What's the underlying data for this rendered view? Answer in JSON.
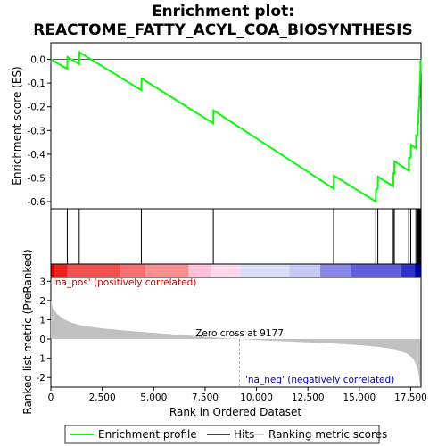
{
  "title_line1": "Enrichment plot:",
  "title_line2": "REACTOME_FATTY_ACYL_COA_BIOSYNTHESIS",
  "colors": {
    "es_line": "#00ff00",
    "hit": "#000000",
    "metric_fill": "#c0c0c0",
    "pos_label": "#cc0000",
    "neg_label": "#0000cc"
  },
  "chart_data": [
    {
      "type": "line",
      "name": "enrichment-profile",
      "ylabel": "Enrichment score (ES)",
      "xlim": [
        0,
        18000
      ],
      "ylim": [
        -0.63,
        0.07
      ],
      "yticks": [
        0.0,
        -0.1,
        -0.2,
        -0.3,
        -0.4,
        -0.5,
        -0.6
      ],
      "ytick_labels": [
        "0.0",
        "-0.1",
        "-0.2",
        "-0.3",
        "-0.4",
        "-0.5",
        "-0.6"
      ],
      "points": [
        [
          0,
          0.0
        ],
        [
          800,
          -0.04
        ],
        [
          810,
          0.01
        ],
        [
          1380,
          -0.02
        ],
        [
          1390,
          0.03
        ],
        [
          4400,
          -0.13
        ],
        [
          4410,
          -0.08
        ],
        [
          7900,
          -0.27
        ],
        [
          7910,
          -0.215
        ],
        [
          13750,
          -0.545
        ],
        [
          13760,
          -0.49
        ],
        [
          15800,
          -0.6
        ],
        [
          15810,
          -0.55
        ],
        [
          15900,
          -0.545
        ],
        [
          15910,
          -0.495
        ],
        [
          16650,
          -0.535
        ],
        [
          16660,
          -0.48
        ],
        [
          16700,
          -0.48
        ],
        [
          16710,
          -0.43
        ],
        [
          17400,
          -0.47
        ],
        [
          17410,
          -0.415
        ],
        [
          17500,
          -0.415
        ],
        [
          17510,
          -0.36
        ],
        [
          17750,
          -0.375
        ],
        [
          17760,
          -0.32
        ],
        [
          17830,
          -0.32
        ],
        [
          17840,
          -0.27
        ],
        [
          17870,
          -0.27
        ],
        [
          17880,
          -0.215
        ],
        [
          17900,
          -0.215
        ],
        [
          17910,
          -0.16
        ],
        [
          17930,
          -0.16
        ],
        [
          17940,
          -0.105
        ],
        [
          17950,
          -0.105
        ],
        [
          17960,
          -0.055
        ],
        [
          17970,
          -0.055
        ],
        [
          17980,
          0.0
        ]
      ]
    },
    {
      "type": "hits",
      "name": "hits",
      "positions": [
        800,
        1380,
        4400,
        7900,
        13750,
        15800,
        15900,
        16650,
        16700,
        17400,
        17500,
        17750,
        17830,
        17870,
        17900,
        17930,
        17950,
        17970
      ]
    },
    {
      "type": "heatmap",
      "name": "rank-color-bar",
      "segments": [
        {
          "from": 0,
          "to": 200,
          "color": "#e00000"
        },
        {
          "from": 200,
          "to": 800,
          "color": "#ee2020"
        },
        {
          "from": 800,
          "to": 3400,
          "color": "#f05050"
        },
        {
          "from": 3400,
          "to": 4600,
          "color": "#f57070"
        },
        {
          "from": 4600,
          "to": 6700,
          "color": "#f89090"
        },
        {
          "from": 6700,
          "to": 7800,
          "color": "#fcc0d8"
        },
        {
          "from": 7800,
          "to": 9200,
          "color": "#fcd8ec"
        },
        {
          "from": 9200,
          "to": 11600,
          "color": "#dcdcfa"
        },
        {
          "from": 11600,
          "to": 13100,
          "color": "#c8c8f5"
        },
        {
          "from": 13100,
          "to": 14600,
          "color": "#8888e8"
        },
        {
          "from": 14600,
          "to": 17000,
          "color": "#6060dd"
        },
        {
          "from": 17000,
          "to": 17700,
          "color": "#3030cc"
        },
        {
          "from": 17700,
          "to": 18000,
          "color": "#0000b0"
        }
      ]
    },
    {
      "type": "area",
      "name": "ranked-list-metric",
      "xlabel": "Rank in Ordered Dataset",
      "ylabel": "Ranked list metric (PreRanked)",
      "xlim": [
        0,
        18000
      ],
      "ylim": [
        -2.5,
        3.2
      ],
      "yticks": [
        3,
        2,
        1,
        0,
        -1,
        -2
      ],
      "xticks": [
        0,
        2500,
        5000,
        7500,
        10000,
        12500,
        15000,
        17500
      ],
      "xtick_labels": [
        "0",
        "2,500",
        "5,000",
        "7,500",
        "10,000",
        "12,500",
        "15,000",
        "17,500"
      ],
      "points": [
        [
          0,
          2.0
        ],
        [
          100,
          1.6
        ],
        [
          300,
          1.3
        ],
        [
          600,
          1.05
        ],
        [
          1000,
          0.85
        ],
        [
          1500,
          0.7
        ],
        [
          2500,
          0.55
        ],
        [
          3500,
          0.45
        ],
        [
          5000,
          0.32
        ],
        [
          6500,
          0.2
        ],
        [
          8000,
          0.08
        ],
        [
          9177,
          0.0
        ],
        [
          10500,
          -0.08
        ],
        [
          12000,
          -0.15
        ],
        [
          13500,
          -0.22
        ],
        [
          15000,
          -0.32
        ],
        [
          16000,
          -0.42
        ],
        [
          16800,
          -0.55
        ],
        [
          17300,
          -0.75
        ],
        [
          17600,
          -1.0
        ],
        [
          17800,
          -1.4
        ],
        [
          17900,
          -1.9
        ],
        [
          17980,
          -2.6
        ]
      ],
      "annotations": {
        "zero_cross": "Zero cross at 9177",
        "zero_cross_rank": 9177,
        "pos_label": "'na_pos' (positively correlated)",
        "neg_label": "'na_neg' (negatively correlated)"
      }
    }
  ],
  "legend": {
    "items": [
      {
        "label": "Enrichment profile",
        "kind": "line",
        "color": "#00ff00"
      },
      {
        "label": "Hits",
        "kind": "line",
        "color": "#000000"
      },
      {
        "label": "Ranking metric scores",
        "kind": "line",
        "color": "#c0c0c0"
      }
    ]
  }
}
